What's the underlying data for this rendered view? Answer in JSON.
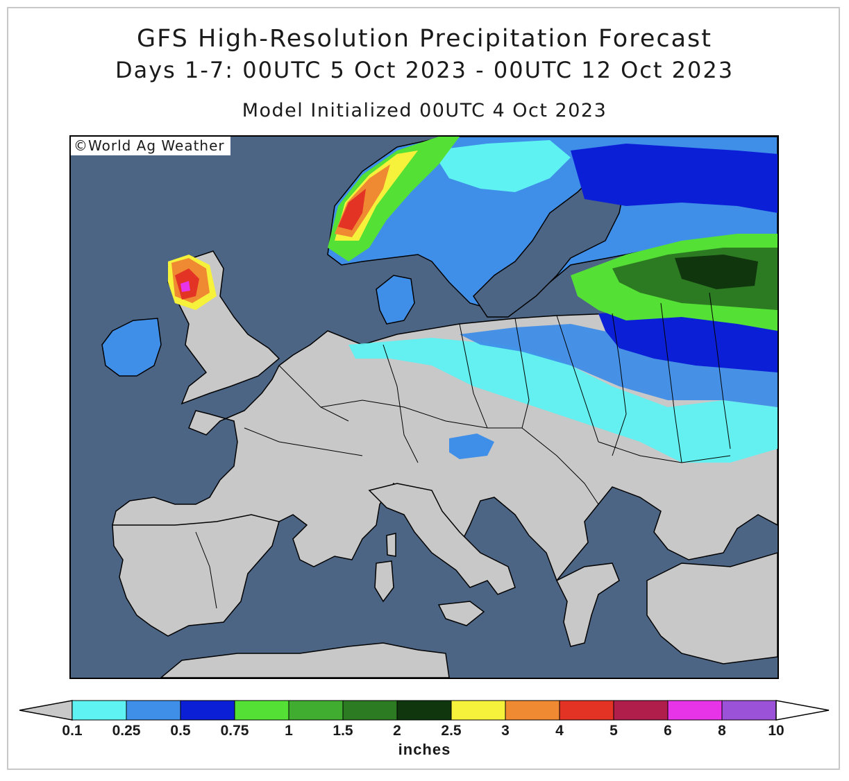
{
  "header": {
    "title": "GFS High-Resolution Precipitation Forecast",
    "period": "Days 1-7: 00UTC 5 Oct 2023 - 00UTC 12 Oct 2023",
    "init": "Model Initialized 00UTC 4 Oct 2023"
  },
  "credit": "©World Ag Weather",
  "colorbar": {
    "units": "inches",
    "below_min_color": "#c8c8c8",
    "above_max_color": "#ffffff",
    "bins": [
      {
        "from": "0.1",
        "to": "0.25",
        "color": "#5ff2f2"
      },
      {
        "from": "0.25",
        "to": "0.5",
        "color": "#3f8ee8"
      },
      {
        "from": "0.5",
        "to": "0.75",
        "color": "#0b1fd6"
      },
      {
        "from": "0.75",
        "to": "1",
        "color": "#55e036"
      },
      {
        "from": "1",
        "to": "1.5",
        "color": "#41ad30"
      },
      {
        "from": "1.5",
        "to": "2",
        "color": "#2c7a22"
      },
      {
        "from": "2",
        "to": "2.5",
        "color": "#10360d"
      },
      {
        "from": "2.5",
        "to": "3",
        "color": "#f6f23c"
      },
      {
        "from": "3",
        "to": "4",
        "color": "#ef8a32"
      },
      {
        "from": "4",
        "to": "5",
        "color": "#e33324"
      },
      {
        "from": "5",
        "to": "6",
        "color": "#b01e4c"
      },
      {
        "from": "6",
        "to": "8",
        "color": "#e834e8"
      },
      {
        "from": "8",
        "to": "10",
        "color": "#9b52d8"
      }
    ],
    "tick_labels": [
      "0.1",
      "0.25",
      "0.5",
      "0.75",
      "1",
      "1.5",
      "2",
      "2.5",
      "3",
      "4",
      "5",
      "6",
      "8",
      "10"
    ]
  },
  "map": {
    "region": "Europe",
    "ocean_color": "#4c6585",
    "land_color": "#c8c8c8",
    "border_color": "#000000"
  }
}
